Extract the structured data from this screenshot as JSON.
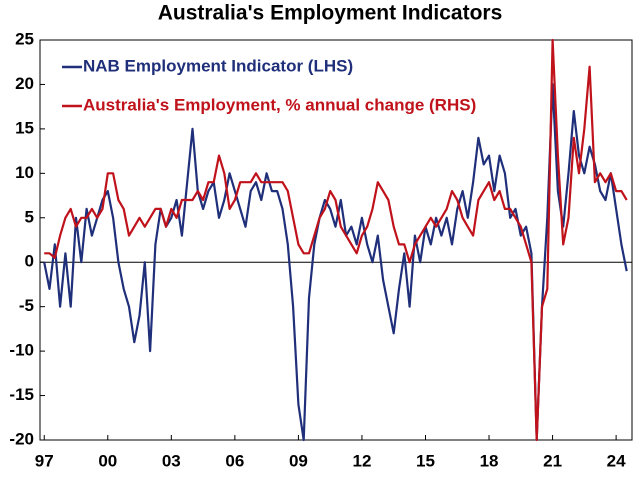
{
  "chart_data": {
    "type": "line",
    "title": "Australia's Employment Indicators",
    "x": [
      1997,
      1997.25,
      1997.5,
      1997.75,
      1998,
      1998.25,
      1998.5,
      1998.75,
      1999,
      1999.25,
      1999.5,
      1999.75,
      2000,
      2000.25,
      2000.5,
      2000.75,
      2001,
      2001.25,
      2001.5,
      2001.75,
      2002,
      2002.25,
      2002.5,
      2002.75,
      2003,
      2003.25,
      2003.5,
      2003.75,
      2004,
      2004.25,
      2004.5,
      2004.75,
      2005,
      2005.25,
      2005.5,
      2005.75,
      2006,
      2006.25,
      2006.5,
      2006.75,
      2007,
      2007.25,
      2007.5,
      2007.75,
      2008,
      2008.25,
      2008.5,
      2008.75,
      2009,
      2009.25,
      2009.5,
      2009.75,
      2010,
      2010.25,
      2010.5,
      2010.75,
      2011,
      2011.25,
      2011.5,
      2011.75,
      2012,
      2012.25,
      2012.5,
      2012.75,
      2013,
      2013.25,
      2013.5,
      2013.75,
      2014,
      2014.25,
      2014.5,
      2014.75,
      2015,
      2015.25,
      2015.5,
      2015.75,
      2016,
      2016.25,
      2016.5,
      2016.75,
      2017,
      2017.25,
      2017.5,
      2017.75,
      2018,
      2018.25,
      2018.5,
      2018.75,
      2019,
      2019.25,
      2019.5,
      2019.75,
      2020,
      2020.25,
      2020.5,
      2020.75,
      2021,
      2021.25,
      2021.5,
      2021.75,
      2022,
      2022.25,
      2022.5,
      2022.75,
      2023,
      2023.25,
      2023.5,
      2023.75,
      2024,
      2024.25,
      2024.5
    ],
    "series": [
      {
        "name": "NAB Employment Indicator (LHS)",
        "color": "#1f2f7a",
        "values": [
          0,
          -3,
          2,
          -5,
          1,
          -5,
          5,
          0,
          6,
          3,
          5,
          7,
          8,
          5,
          0,
          -3,
          -5,
          -9,
          -6,
          0,
          -10,
          2,
          6,
          4,
          5,
          7,
          3,
          9,
          15,
          8,
          6,
          8,
          9,
          5,
          7,
          10,
          8,
          6,
          4,
          8,
          9,
          7,
          10,
          8,
          8,
          6,
          2,
          -5,
          -16,
          -20,
          -4,
          2,
          5,
          7,
          6,
          4,
          7,
          3,
          4,
          2,
          5,
          2,
          0,
          3,
          -2,
          -5,
          -8,
          -3,
          1,
          -5,
          3,
          0,
          4,
          2,
          5,
          3,
          5,
          2,
          6,
          8,
          5,
          9,
          14,
          11,
          12,
          8,
          12,
          10,
          5,
          6,
          3,
          4,
          1,
          -20,
          -5,
          5,
          20,
          8,
          4,
          10,
          17,
          12,
          10,
          13,
          11,
          8,
          7,
          10,
          6,
          2,
          -1
        ]
      },
      {
        "name": "Australia's Employment, % annual change (RHS)",
        "color": "#c0121b",
        "values": [
          1,
          1,
          0.5,
          3,
          5,
          6,
          4,
          5,
          5,
          6,
          5,
          6,
          10,
          10,
          7,
          6,
          3,
          4,
          5,
          4,
          5,
          6,
          6,
          4,
          6,
          5,
          7,
          7,
          7,
          8,
          7,
          9,
          9,
          12,
          10,
          6,
          7,
          9,
          9,
          9,
          10,
          9,
          9,
          9,
          9,
          9,
          8,
          5,
          2,
          1,
          1,
          3,
          5,
          6,
          8,
          7,
          4,
          3,
          2,
          1,
          3,
          4,
          6,
          9,
          8,
          7,
          4,
          2,
          2,
          0,
          2,
          3,
          4,
          5,
          4,
          5,
          6,
          8,
          7,
          5,
          4,
          3,
          7,
          8,
          9,
          7,
          8,
          6,
          6,
          5,
          4,
          2,
          0,
          -20,
          -5,
          -3,
          25,
          12,
          2,
          5,
          14,
          10,
          15,
          22,
          9,
          10,
          9,
          10,
          8,
          8,
          7
        ]
      }
    ],
    "xlim": [
      1996.8,
      2024.75
    ],
    "xticks": [
      {
        "value": 1997,
        "label": "97"
      },
      {
        "value": 2000,
        "label": "00"
      },
      {
        "value": 2003,
        "label": "03"
      },
      {
        "value": 2006,
        "label": "06"
      },
      {
        "value": 2009,
        "label": "09"
      },
      {
        "value": 2012,
        "label": "12"
      },
      {
        "value": 2015,
        "label": "15"
      },
      {
        "value": 2018,
        "label": "18"
      },
      {
        "value": 2021,
        "label": "21"
      },
      {
        "value": 2024,
        "label": "24"
      }
    ],
    "ylim": [
      -20,
      25
    ],
    "yticks": [
      -20,
      -15,
      -10,
      -5,
      0,
      5,
      10,
      15,
      20,
      25
    ],
    "legend": "upper-left"
  }
}
